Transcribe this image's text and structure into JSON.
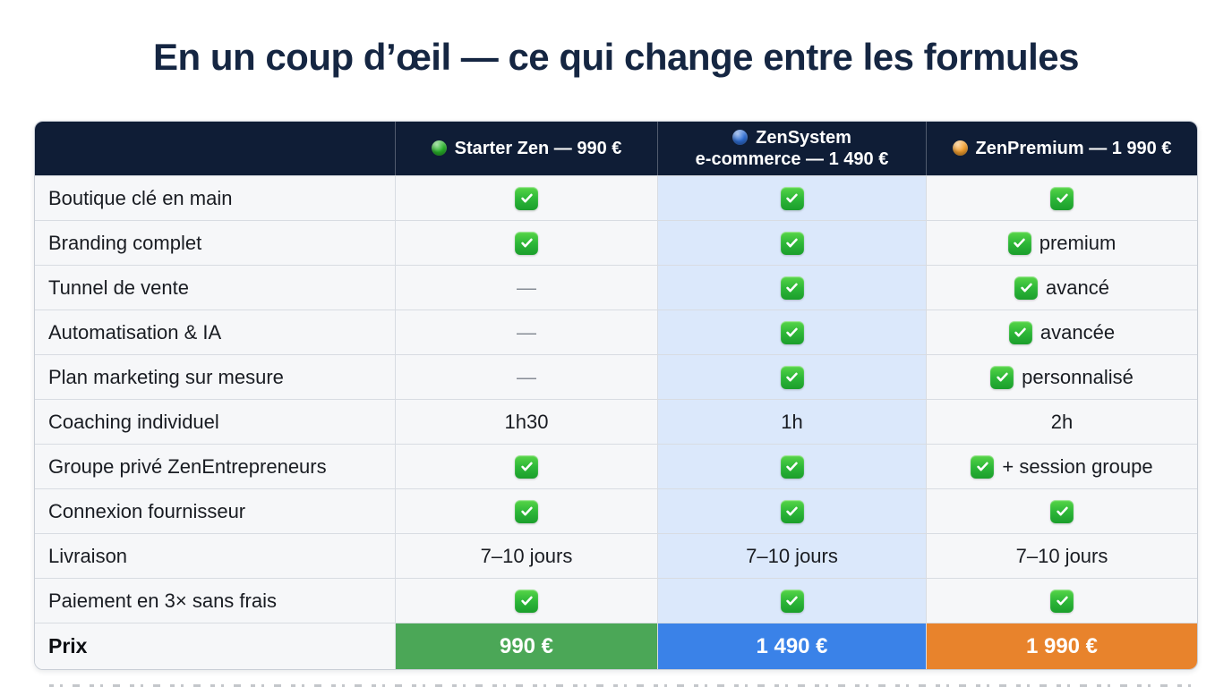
{
  "title": "En un coup d’œil — ce qui change entre les formules",
  "colors": {
    "header_bg": "#0f1d36",
    "highlight_column_bg": "#dbe8fb",
    "row_bg": "#f6f7f9",
    "check_green": "#2db738",
    "dash_gray": "#868c95",
    "price_green": "#4ba757",
    "price_blue": "#3a82e8",
    "price_orange": "#e8832c",
    "dot_green": "#28b42a",
    "dot_blue": "#2f6fd6",
    "dot_orange": "#f5a02e"
  },
  "table": {
    "columns": [
      {
        "id": "feature",
        "lines": [
          ""
        ]
      },
      {
        "id": "starter",
        "dot_color": "#28b42a",
        "lines": [
          "Starter Zen — 990 €"
        ]
      },
      {
        "id": "zensystem",
        "dot_color": "#2f6fd6",
        "lines": [
          "ZenSystem",
          "e-commerce — 1 490 €"
        ],
        "highlight": true
      },
      {
        "id": "zenpremium",
        "dot_color": "#f5a02e",
        "lines": [
          "ZenPremium — 1 990 €"
        ]
      }
    ],
    "rows": [
      {
        "feature": "Boutique clé en main",
        "cells": [
          {
            "check": true
          },
          {
            "check": true
          },
          {
            "check": true
          }
        ]
      },
      {
        "feature": "Branding complet",
        "cells": [
          {
            "check": true
          },
          {
            "check": true
          },
          {
            "check": true,
            "text": "premium"
          }
        ]
      },
      {
        "feature": "Tunnel de vente",
        "cells": [
          {
            "dash": true
          },
          {
            "check": true
          },
          {
            "check": true,
            "text": "avancé"
          }
        ]
      },
      {
        "feature": "Automatisation & IA",
        "cells": [
          {
            "dash": true
          },
          {
            "check": true
          },
          {
            "check": true,
            "text": "avancée"
          }
        ]
      },
      {
        "feature": "Plan marketing sur mesure",
        "cells": [
          {
            "dash": true
          },
          {
            "check": true
          },
          {
            "check": true,
            "text": "personnalisé"
          }
        ]
      },
      {
        "feature": "Coaching individuel",
        "cells": [
          {
            "text": "1h30"
          },
          {
            "text": "1h"
          },
          {
            "text": "2h"
          }
        ]
      },
      {
        "feature": "Groupe privé ZenEntrepreneurs",
        "cells": [
          {
            "check": true
          },
          {
            "check": true
          },
          {
            "check": true,
            "text": "+ session groupe"
          }
        ]
      },
      {
        "feature": "Connexion fournisseur",
        "cells": [
          {
            "check": true
          },
          {
            "check": true
          },
          {
            "check": true
          }
        ]
      },
      {
        "feature": "Livraison",
        "cells": [
          {
            "text": "7–10 jours"
          },
          {
            "text": "7–10 jours"
          },
          {
            "text": "7–10 jours"
          }
        ]
      },
      {
        "feature": "Paiement en 3× sans frais",
        "cells": [
          {
            "check": true
          },
          {
            "check": true
          },
          {
            "check": true
          }
        ]
      }
    ],
    "price_row": {
      "feature": "Prix",
      "values": [
        {
          "text": "990 €",
          "bg": "#4ba757"
        },
        {
          "text": "1 490 €",
          "bg": "#3a82e8"
        },
        {
          "text": "1 990 €",
          "bg": "#e8832c"
        }
      ]
    }
  }
}
